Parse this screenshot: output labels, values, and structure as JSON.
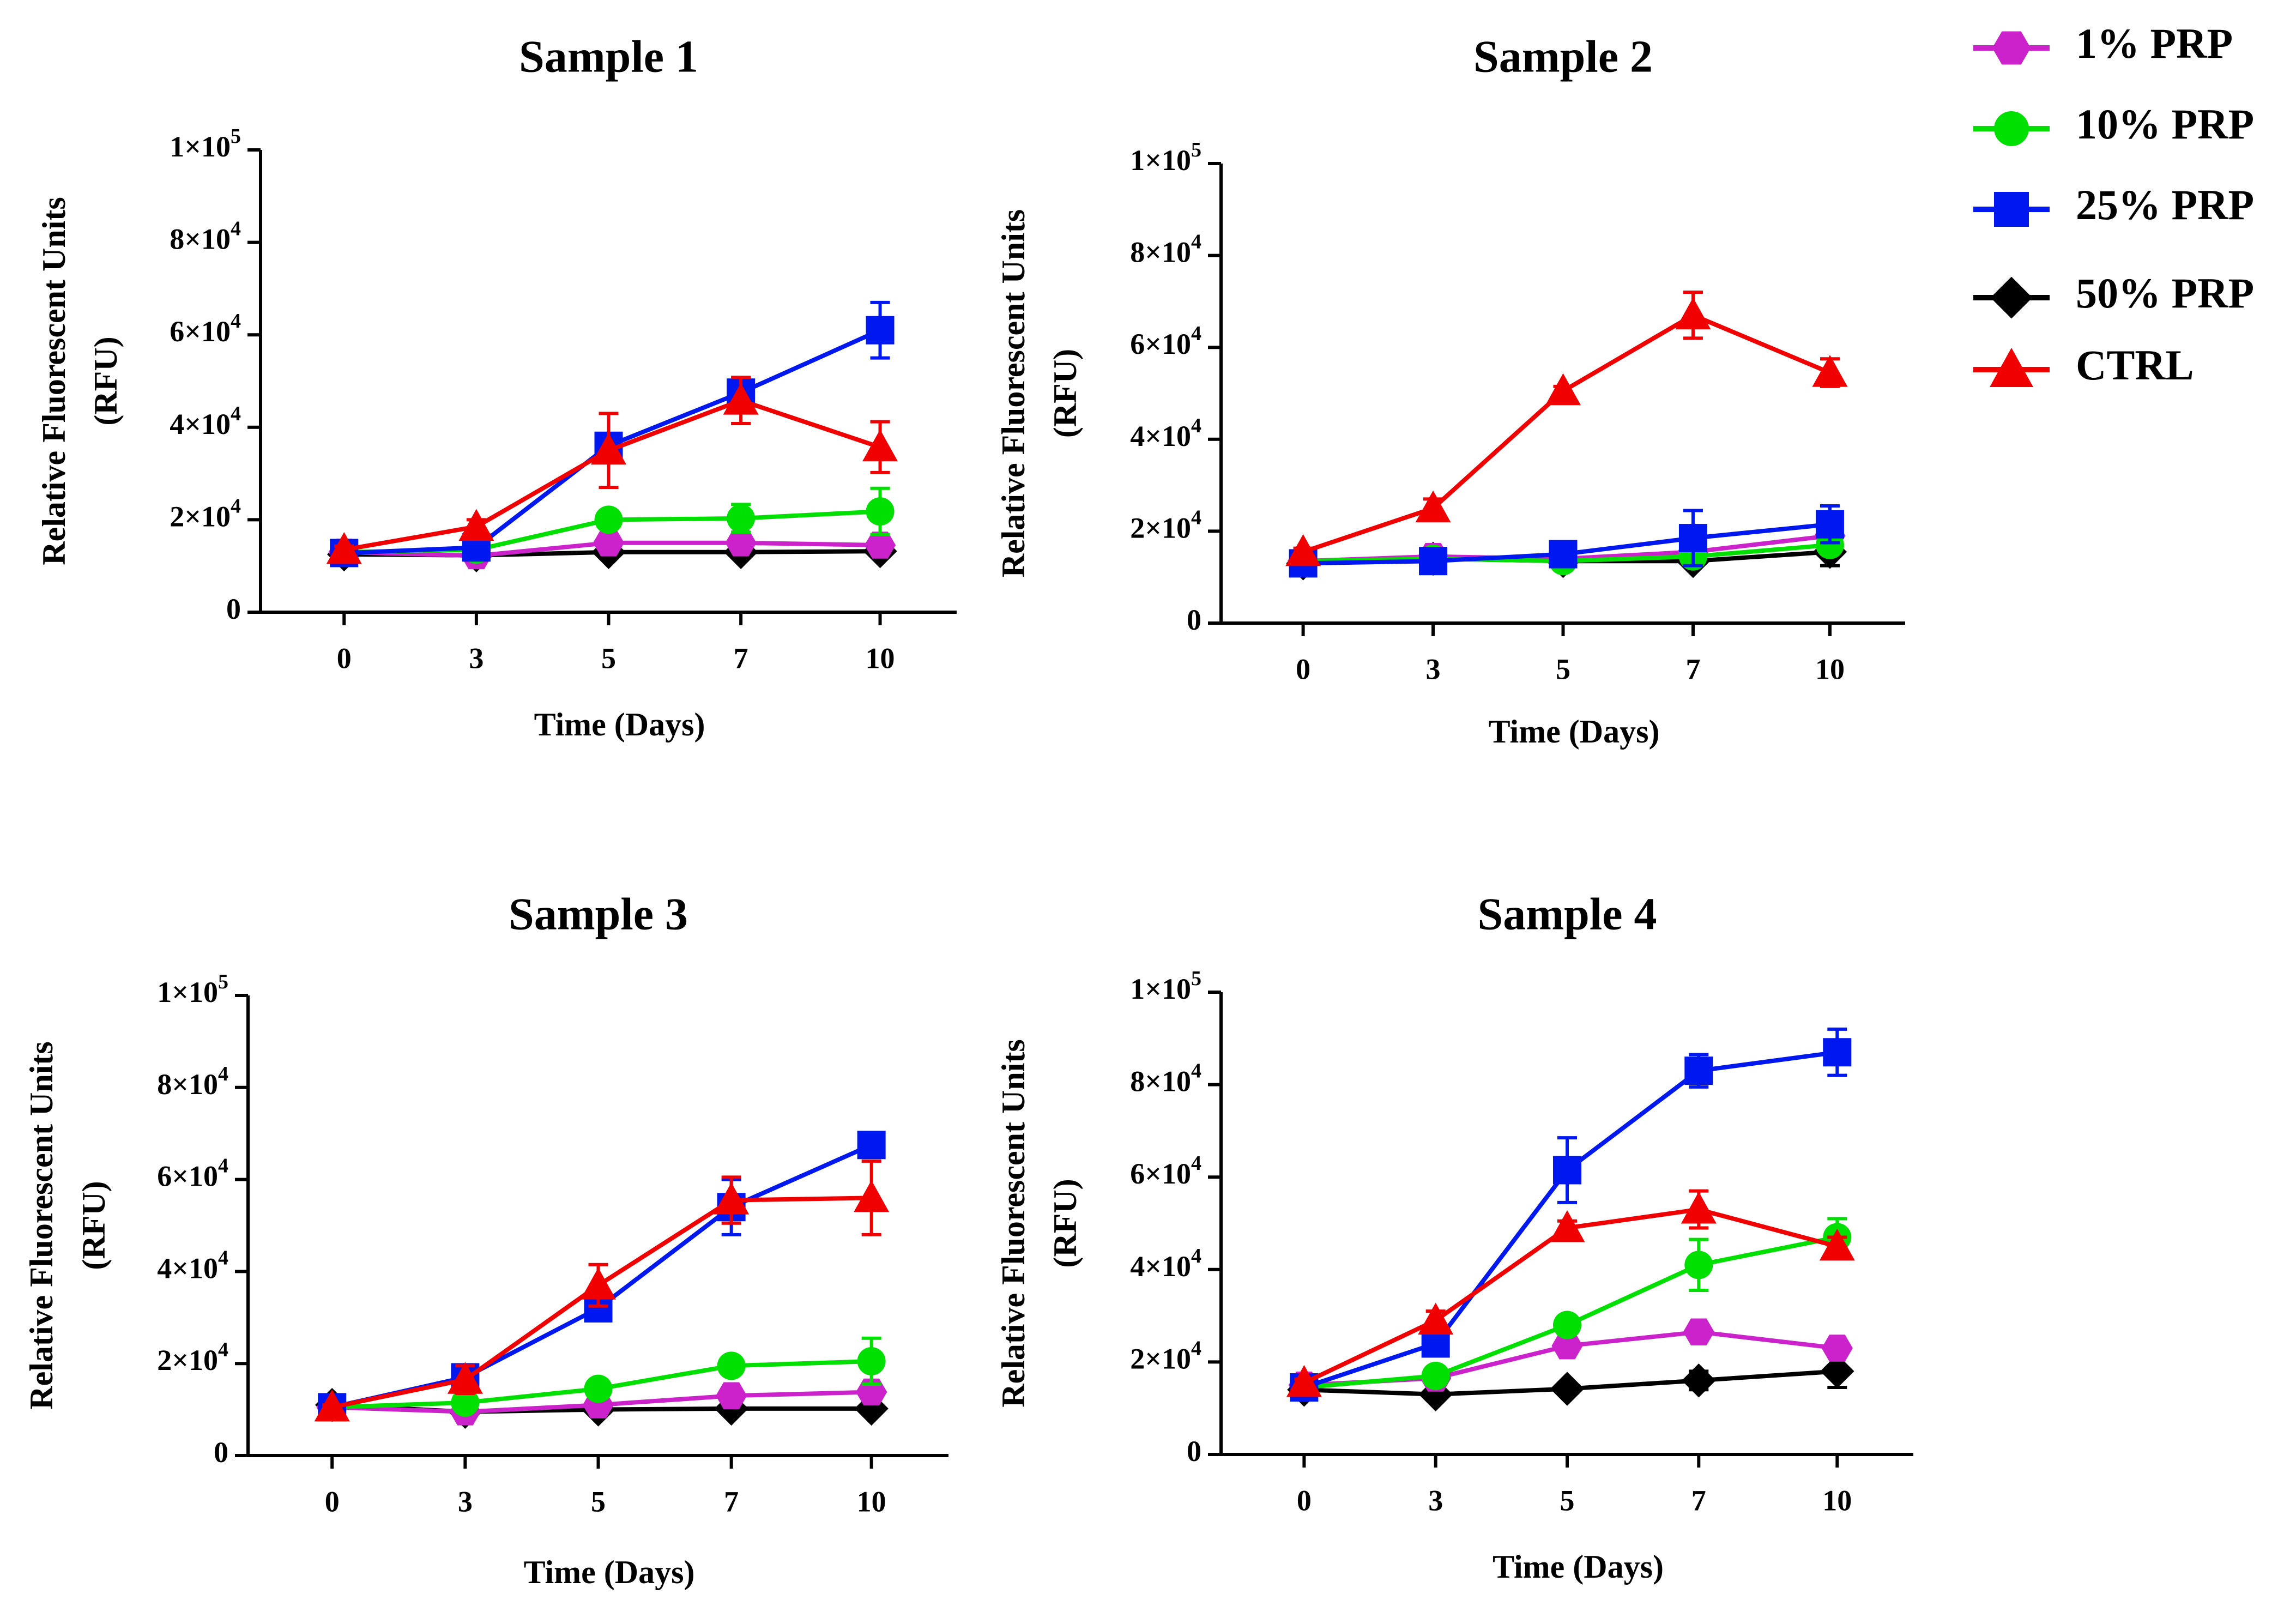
{
  "legend": [
    {
      "name": "1% PRP",
      "color": "#cc22cc",
      "marker": "hexagon"
    },
    {
      "name": "10% PRP",
      "color": "#00e000",
      "marker": "circle"
    },
    {
      "name": "25% PRP",
      "color": "#0018f0",
      "marker": "square"
    },
    {
      "name": "50% PRP",
      "color": "#000000",
      "marker": "diamond"
    },
    {
      "name": "CTRL",
      "color": "#f00000",
      "marker": "triangle"
    }
  ],
  "chart_data": [
    {
      "type": "line",
      "title": "Sample 1",
      "xlabel": "Time (Days)",
      "ylabel": [
        "Relative Fluorescent Units",
        "(RFU)"
      ],
      "x": [
        0,
        3,
        5,
        7,
        10
      ],
      "x_tick_labels": [
        "0",
        "3",
        "5",
        "7",
        "10"
      ],
      "ylim": [
        0,
        100000
      ],
      "y_tick_labels": [
        {
          "base": "0",
          "exp": ""
        },
        {
          "base": "2×10",
          "exp": "4"
        },
        {
          "base": "4×10",
          "exp": "4"
        },
        {
          "base": "6×10",
          "exp": "4"
        },
        {
          "base": "8×10",
          "exp": "4"
        },
        {
          "base": "1×10",
          "exp": "5"
        }
      ],
      "series": [
        {
          "name": "1% PRP",
          "values": [
            13000,
            12200,
            15000,
            15000,
            14500
          ],
          "errors": [
            500,
            400,
            600,
            500,
            500
          ]
        },
        {
          "name": "10% PRP",
          "values": [
            13000,
            13500,
            20000,
            20300,
            21800
          ],
          "errors": [
            500,
            500,
            1000,
            3000,
            5000
          ]
        },
        {
          "name": "25% PRP",
          "values": [
            12800,
            14000,
            36000,
            47500,
            61000
          ],
          "errors": [
            500,
            800,
            2000,
            2000,
            6000
          ]
        },
        {
          "name": "50% PRP",
          "values": [
            12500,
            12300,
            13000,
            13000,
            13200
          ],
          "errors": [
            300,
            300,
            300,
            300,
            300
          ]
        },
        {
          "name": "CTRL",
          "values": [
            13500,
            18500,
            35000,
            45800,
            35700
          ],
          "errors": [
            800,
            1500,
            8000,
            5000,
            5500
          ]
        }
      ]
    },
    {
      "type": "line",
      "title": "Sample 2",
      "xlabel": "Time (Days)",
      "ylabel": [
        "Relative Fluorescent Units",
        "(RFU)"
      ],
      "x": [
        0,
        3,
        5,
        7,
        10
      ],
      "x_tick_labels": [
        "0",
        "3",
        "5",
        "7",
        "10"
      ],
      "ylim": [
        0,
        100000
      ],
      "y_tick_labels": [
        {
          "base": "0",
          "exp": ""
        },
        {
          "base": "2×10",
          "exp": "4"
        },
        {
          "base": "4×10",
          "exp": "4"
        },
        {
          "base": "6×10",
          "exp": "4"
        },
        {
          "base": "8×10",
          "exp": "4"
        },
        {
          "base": "1×10",
          "exp": "5"
        }
      ],
      "series": [
        {
          "name": "1% PRP",
          "values": [
            13500,
            14500,
            14000,
            15500,
            19000
          ],
          "errors": [
            500,
            500,
            500,
            1000,
            1500
          ]
        },
        {
          "name": "10% PRP",
          "values": [
            13500,
            14000,
            13500,
            14500,
            17000
          ],
          "errors": [
            500,
            500,
            500,
            1000,
            1500
          ]
        },
        {
          "name": "25% PRP",
          "values": [
            13000,
            13500,
            15000,
            18500,
            21500
          ],
          "errors": [
            500,
            500,
            1000,
            6000,
            4000
          ]
        },
        {
          "name": "50% PRP",
          "values": [
            13000,
            14000,
            13500,
            13500,
            15500
          ],
          "errors": [
            500,
            500,
            500,
            500,
            3000
          ]
        },
        {
          "name": "CTRL",
          "values": [
            15500,
            25000,
            50500,
            67000,
            54500
          ],
          "errors": [
            800,
            2000,
            1000,
            5000,
            3000
          ]
        }
      ]
    },
    {
      "type": "line",
      "title": "Sample 3",
      "xlabel": "Time (Days)",
      "ylabel": [
        "Relative Fluorescent Units",
        "(RFU)"
      ],
      "x": [
        0,
        3,
        5,
        7,
        10
      ],
      "x_tick_labels": [
        "0",
        "3",
        "5",
        "7",
        "10"
      ],
      "ylim": [
        0,
        100000
      ],
      "y_tick_labels": [
        {
          "base": "0",
          "exp": ""
        },
        {
          "base": "2×10",
          "exp": "4"
        },
        {
          "base": "4×10",
          "exp": "4"
        },
        {
          "base": "6×10",
          "exp": "4"
        },
        {
          "base": "8×10",
          "exp": "4"
        },
        {
          "base": "1×10",
          "exp": "5"
        }
      ],
      "series": [
        {
          "name": "1% PRP",
          "values": [
            10500,
            9500,
            11000,
            13000,
            13800
          ],
          "errors": [
            400,
            400,
            500,
            1000,
            1500
          ]
        },
        {
          "name": "10% PRP",
          "values": [
            10500,
            11500,
            14500,
            19500,
            20500
          ],
          "errors": [
            400,
            500,
            1000,
            1500,
            5000
          ]
        },
        {
          "name": "25% PRP",
          "values": [
            10500,
            17000,
            32000,
            54000,
            67500
          ],
          "errors": [
            500,
            2500,
            2000,
            6000,
            2500
          ]
        },
        {
          "name": "50% PRP",
          "values": [
            11000,
            9500,
            10000,
            10200,
            10200
          ],
          "errors": [
            300,
            300,
            300,
            300,
            300
          ]
        },
        {
          "name": "CTRL",
          "values": [
            10500,
            16500,
            37000,
            55500,
            56000
          ],
          "errors": [
            500,
            3000,
            4500,
            5000,
            8000
          ]
        }
      ]
    },
    {
      "type": "line",
      "title": "Sample 4",
      "xlabel": "Time (Days)",
      "ylabel": [
        "Relative Fluorescent Units",
        "(RFU)"
      ],
      "x": [
        0,
        3,
        5,
        7,
        10
      ],
      "x_tick_labels": [
        "0",
        "3",
        "5",
        "7",
        "10"
      ],
      "ylim": [
        0,
        100000
      ],
      "y_tick_labels": [
        {
          "base": "0",
          "exp": ""
        },
        {
          "base": "2×10",
          "exp": "4"
        },
        {
          "base": "4×10",
          "exp": "4"
        },
        {
          "base": "6×10",
          "exp": "4"
        },
        {
          "base": "8×10",
          "exp": "4"
        },
        {
          "base": "1×10",
          "exp": "5"
        }
      ],
      "series": [
        {
          "name": "1% PRP",
          "values": [
            15000,
            16500,
            23500,
            26500,
            23000
          ],
          "errors": [
            500,
            800,
            1000,
            1200,
            1200
          ]
        },
        {
          "name": "10% PRP",
          "values": [
            14500,
            17000,
            28000,
            41000,
            47000
          ],
          "errors": [
            500,
            800,
            1500,
            5500,
            4000
          ]
        },
        {
          "name": "25% PRP",
          "values": [
            14500,
            24000,
            61500,
            83000,
            87000
          ],
          "errors": [
            500,
            1000,
            7000,
            3500,
            5000
          ]
        },
        {
          "name": "50% PRP",
          "values": [
            14000,
            13000,
            14200,
            16000,
            18000
          ],
          "errors": [
            500,
            500,
            800,
            2000,
            3500
          ]
        },
        {
          "name": "CTRL",
          "values": [
            15500,
            29000,
            49000,
            53000,
            45000
          ],
          "errors": [
            800,
            2000,
            1500,
            4000,
            2000
          ]
        }
      ]
    }
  ]
}
